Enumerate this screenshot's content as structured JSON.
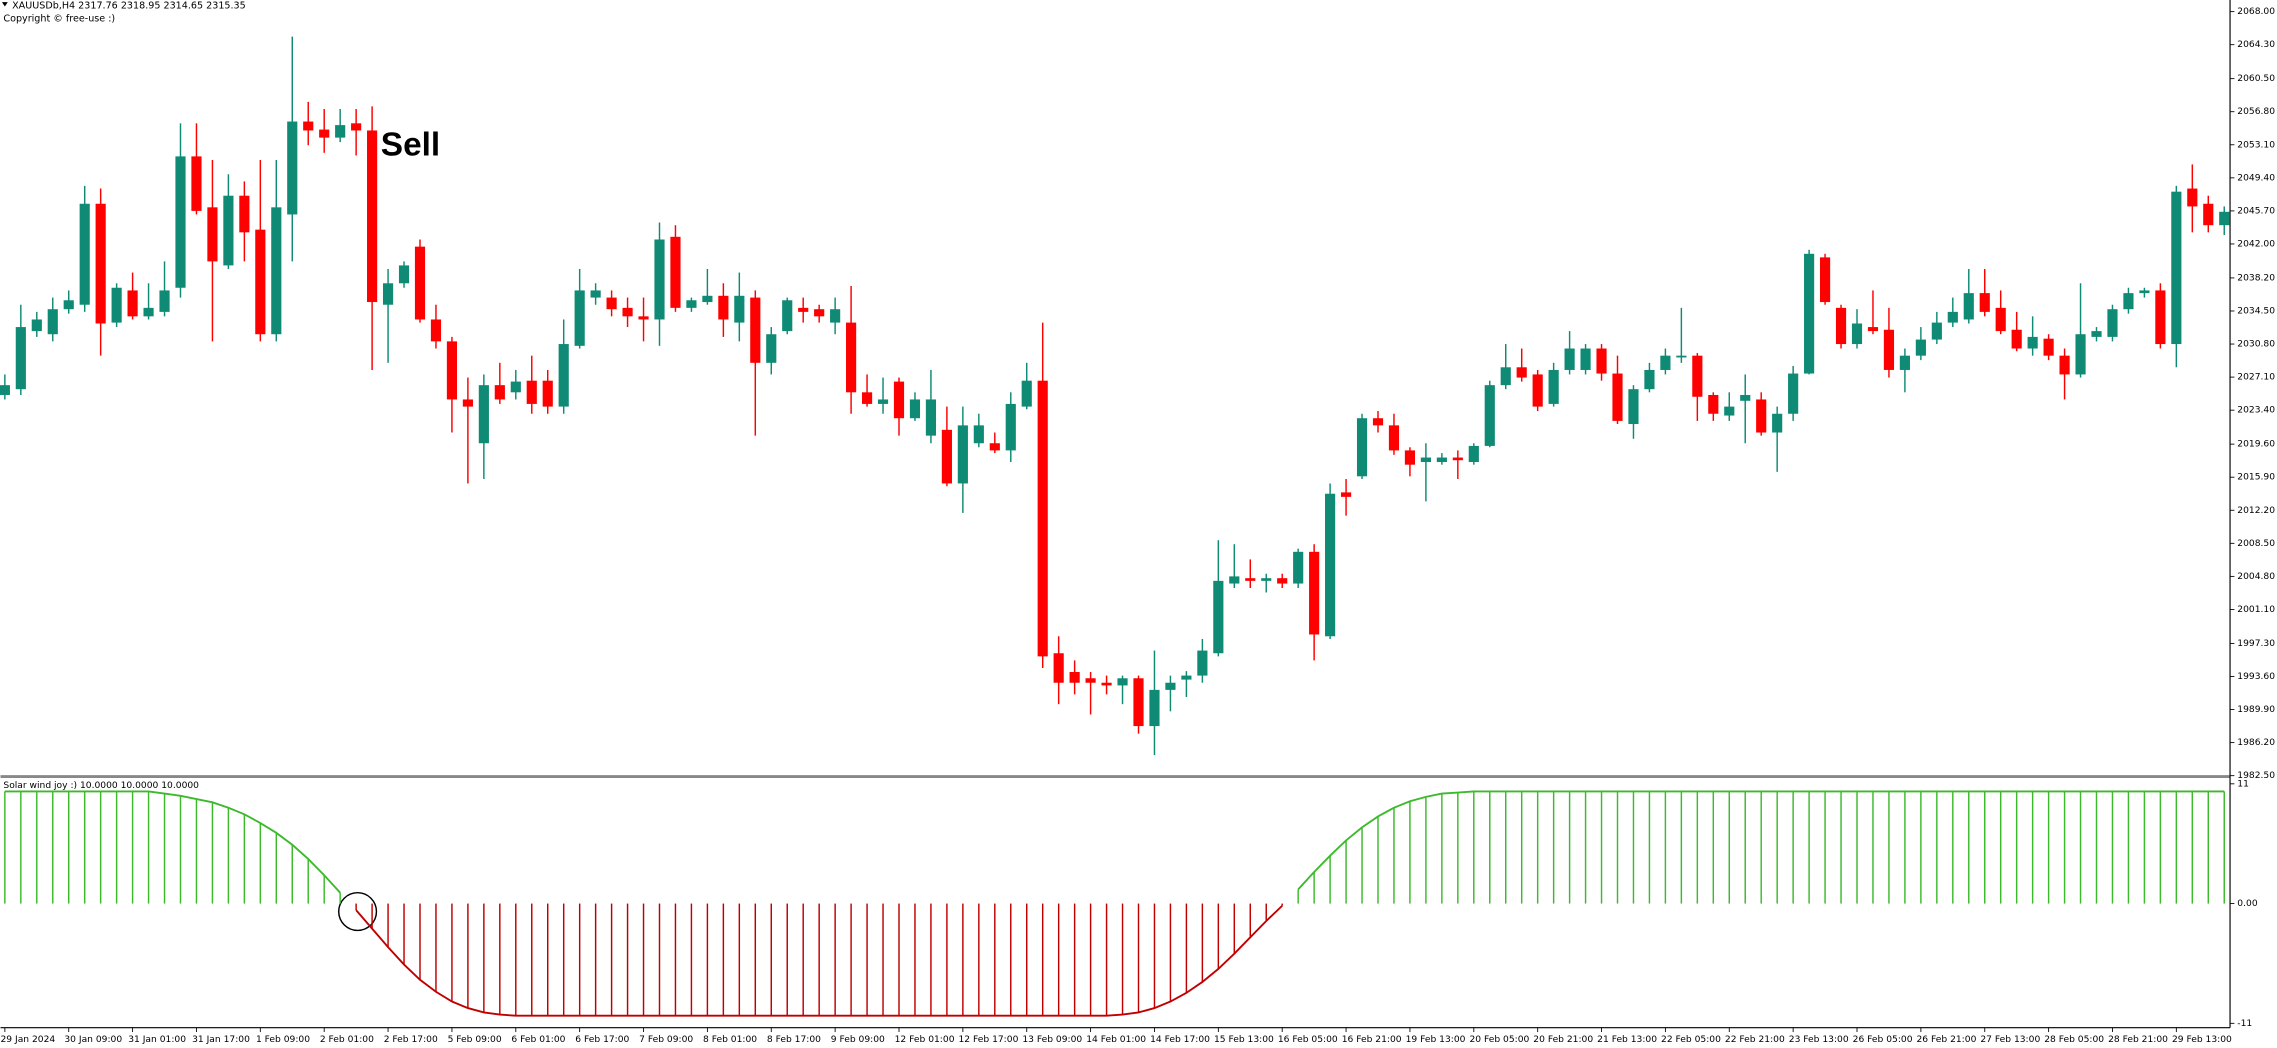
{
  "header": {
    "symbol_info": "XAUUSDb,H4  2317.76 2318.95 2314.65 2315.35",
    "copyright": "Copyright © free-use :)"
  },
  "chart_data": [
    {
      "type": "candlestick",
      "annotation": "Sell",
      "up_color": "#0f8b75",
      "down_color": "#ff0000",
      "categories": [
        "29 Jan 2024",
        null,
        null,
        null,
        "30 Jan 09:00",
        null,
        null,
        null,
        "31 Jan 01:00",
        null,
        null,
        null,
        "31 Jan 17:00",
        null,
        null,
        null,
        "1 Feb 09:00",
        null,
        null,
        null,
        "2 Feb 01:00",
        null,
        null,
        null,
        "2 Feb 17:00",
        null,
        null,
        null,
        "5 Feb 09:00",
        null,
        null,
        null,
        "6 Feb 01:00",
        null,
        null,
        null,
        "6 Feb 17:00",
        null,
        null,
        null,
        "7 Feb 09:00",
        null,
        null,
        null,
        "8 Feb 01:00",
        null,
        null,
        null,
        "8 Feb 17:00",
        null,
        null,
        null,
        "9 Feb 09:00",
        null,
        null,
        null,
        "12 Feb 01:00",
        null,
        null,
        null,
        "12 Feb 17:00",
        null,
        null,
        null,
        "13 Feb 09:00",
        null,
        null,
        null,
        "14 Feb 01:00",
        null,
        null,
        null,
        "14 Feb 17:00",
        null,
        null,
        null,
        "15 Feb 13:00",
        null,
        null,
        null,
        "16 Feb 05:00",
        null,
        null,
        null,
        "16 Feb 21:00",
        null,
        null,
        null,
        "19 Feb 13:00",
        null,
        null,
        null,
        "20 Feb 05:00",
        null,
        null,
        null,
        "20 Feb 21:00",
        null,
        null,
        null,
        "21 Feb 13:00",
        null,
        null,
        null,
        "22 Feb 05:00",
        null,
        null,
        null,
        "22 Feb 21:00",
        null,
        null,
        null,
        "23 Feb 13:00",
        null,
        null,
        null,
        "26 Feb 05:00",
        null,
        null,
        null,
        "26 Feb 21:00",
        null,
        null,
        null,
        "27 Feb 13:00",
        null,
        null,
        null,
        "28 Feb 05:00",
        null,
        null,
        null,
        "28 Feb 21:00",
        null,
        null,
        null,
        "29 Feb 13:00",
        null,
        null,
        null
      ],
      "open": [
        2025.1,
        2025.75,
        2032.25,
        2031.9,
        2034.7,
        2035.2,
        2046.5,
        2033.2,
        2036.8,
        2033.9,
        2034.4,
        2037.1,
        2051.8,
        2046.1,
        2039.6,
        2047.4,
        2043.6,
        2031.9,
        2045.3,
        2055.7,
        2054.8,
        2053.9,
        2055.5,
        2054.7,
        2035.2,
        2037.6,
        2041.7,
        2033.55,
        2031.1,
        2024.6,
        2019.7,
        2026.2,
        2025.4,
        2026.7,
        2026.7,
        2023.8,
        2030.6,
        2036.0,
        2036.0,
        2034.85,
        2033.9,
        2033.55,
        2042.8,
        2034.85,
        2035.5,
        2036.2,
        2033.2,
        2036.0,
        2028.7,
        2032.25,
        2034.85,
        2034.7,
        2033.2,
        2033.2,
        2025.4,
        2024.1,
        2026.6,
        2022.5,
        2020.55,
        2021.2,
        2015.2,
        2019.7,
        2019.7,
        2018.9,
        2023.8,
        2026.7,
        1996.2,
        1994.1,
        1993.4,
        1992.9,
        1992.6,
        1993.4,
        1988.05,
        1992.1,
        1993.25,
        1993.7,
        1996.2,
        2004.0,
        2004.6,
        2004.3,
        2004.6,
        2004.0,
        2007.55,
        1998.1,
        2014.2,
        2016.0,
        2022.5,
        2021.7,
        2018.9,
        2017.6,
        2017.6,
        2018.1,
        2017.6,
        2019.4,
        2026.2,
        2028.2,
        2027.4,
        2024.1,
        2027.9,
        2027.9,
        2030.3,
        2027.5,
        2021.85,
        2025.75,
        2027.9,
        2029.3,
        2029.5,
        2025.1,
        2022.8,
        2024.45,
        2024.6,
        2020.9,
        2023.0,
        2027.5,
        2040.5,
        2034.85,
        2030.8,
        2032.7,
        2032.4,
        2027.9,
        2029.5,
        2031.3,
        2033.2,
        2033.55,
        2036.5,
        2034.85,
        2032.4,
        2030.3,
        2031.4,
        2029.5,
        2027.4,
        2031.6,
        2031.6,
        2034.7,
        2036.5,
        2036.8,
        2030.8,
        2048.2,
        2046.5,
        2044.1
      ],
      "high": [
        2027.4,
        2035.2,
        2034.4,
        2036.0,
        2036.8,
        2048.5,
        2048.2,
        2037.6,
        2038.8,
        2037.6,
        2040.05,
        2055.5,
        2055.5,
        2051.4,
        2049.8,
        2049.0,
        2051.4,
        2051.4,
        2065.2,
        2057.9,
        2057.1,
        2057.1,
        2057.1,
        2057.4,
        2039.2,
        2040.05,
        2042.5,
        2035.2,
        2031.6,
        2027.05,
        2027.4,
        2028.7,
        2027.9,
        2029.5,
        2027.9,
        2033.55,
        2039.2,
        2037.6,
        2036.8,
        2036.0,
        2036.0,
        2044.4,
        2044.1,
        2036.0,
        2039.2,
        2037.6,
        2038.8,
        2036.8,
        2032.7,
        2036.0,
        2036.0,
        2035.2,
        2036.0,
        2037.3,
        2027.4,
        2027.05,
        2027.05,
        2025.4,
        2027.9,
        2023.8,
        2023.8,
        2023.0,
        2020.9,
        2025.4,
        2028.7,
        2033.2,
        1998.1,
        1995.4,
        1994.1,
        1993.7,
        1993.7,
        1993.7,
        1996.5,
        1993.7,
        1994.2,
        1997.8,
        2008.85,
        2008.4,
        2006.7,
        2005.1,
        2005.1,
        2007.9,
        2008.4,
        2015.2,
        2015.7,
        2023.0,
        2023.3,
        2023.0,
        2019.25,
        2019.7,
        2018.6,
        2018.9,
        2019.7,
        2026.7,
        2030.8,
        2030.3,
        2027.9,
        2028.7,
        2032.25,
        2030.8,
        2030.8,
        2029.5,
        2026.2,
        2028.7,
        2030.3,
        2034.85,
        2029.8,
        2025.4,
        2025.4,
        2027.4,
        2025.4,
        2023.8,
        2028.35,
        2041.35,
        2040.9,
        2035.2,
        2034.7,
        2036.8,
        2034.85,
        2030.3,
        2032.7,
        2034.4,
        2036.0,
        2039.2,
        2039.2,
        2036.8,
        2034.4,
        2033.9,
        2031.9,
        2030.3,
        2037.6,
        2032.7,
        2035.2,
        2037.1,
        2037.1,
        2037.6,
        2048.5,
        2050.9,
        2047.4,
        2046.2
      ],
      "low": [
        2024.6,
        2025.1,
        2031.6,
        2031.1,
        2034.2,
        2034.4,
        2029.5,
        2032.7,
        2033.55,
        2033.55,
        2033.9,
        2036.0,
        2045.3,
        2031.1,
        2039.2,
        2040.05,
        2031.1,
        2031.1,
        2040.05,
        2053.05,
        2052.2,
        2053.4,
        2051.9,
        2027.9,
        2028.7,
        2037.1,
        2033.2,
        2030.3,
        2020.9,
        2015.2,
        2015.7,
        2024.1,
        2024.6,
        2023.0,
        2023.0,
        2023.0,
        2030.3,
        2035.2,
        2033.9,
        2032.7,
        2031.1,
        2030.6,
        2034.4,
        2034.4,
        2035.2,
        2031.6,
        2031.1,
        2020.55,
        2027.4,
        2031.9,
        2033.2,
        2033.2,
        2031.9,
        2023.0,
        2023.8,
        2023.0,
        2020.55,
        2022.2,
        2019.7,
        2014.9,
        2011.9,
        2019.25,
        2018.6,
        2017.6,
        2023.5,
        1994.55,
        1990.5,
        1991.6,
        1989.35,
        1991.6,
        1990.5,
        1987.2,
        1984.8,
        1989.7,
        1991.3,
        1992.9,
        1995.85,
        2003.5,
        2003.5,
        2003.0,
        2003.5,
        2003.5,
        1995.4,
        1997.8,
        2011.6,
        2015.7,
        2020.9,
        2018.4,
        2016.0,
        2013.2,
        2017.3,
        2015.7,
        2017.3,
        2019.25,
        2025.75,
        2026.6,
        2023.3,
        2023.8,
        2027.4,
        2027.4,
        2026.7,
        2021.85,
        2020.2,
        2025.4,
        2027.4,
        2028.7,
        2022.2,
        2022.2,
        2022.2,
        2019.7,
        2020.55,
        2016.5,
        2022.2,
        2027.4,
        2035.2,
        2030.3,
        2030.3,
        2031.9,
        2027.05,
        2025.4,
        2029.0,
        2030.8,
        2032.7,
        2033.1,
        2033.9,
        2031.9,
        2030.0,
        2029.5,
        2029.0,
        2024.6,
        2027.05,
        2031.1,
        2031.1,
        2034.2,
        2036.0,
        2030.3,
        2028.2,
        2043.3,
        2043.3,
        2043.0
      ],
      "close": [
        2026.2,
        2032.7,
        2033.55,
        2034.7,
        2035.7,
        2046.5,
        2033.1,
        2037.1,
        2033.9,
        2034.85,
        2036.8,
        2051.8,
        2045.7,
        2040.05,
        2047.4,
        2043.3,
        2031.9,
        2046.1,
        2055.7,
        2054.7,
        2053.9,
        2055.3,
        2054.7,
        2035.5,
        2037.6,
        2039.6,
        2033.55,
        2031.1,
        2024.6,
        2023.8,
        2026.2,
        2024.6,
        2026.6,
        2024.1,
        2023.8,
        2030.8,
        2036.8,
        2036.8,
        2034.7,
        2033.9,
        2033.55,
        2042.5,
        2034.85,
        2035.7,
        2036.2,
        2033.55,
        2036.2,
        2028.7,
        2031.9,
        2035.7,
        2034.4,
        2033.9,
        2034.7,
        2025.4,
        2024.1,
        2024.6,
        2022.5,
        2024.6,
        2024.6,
        2015.2,
        2021.7,
        2021.7,
        2018.9,
        2024.1,
        2026.7,
        1995.85,
        1992.9,
        1992.9,
        1992.9,
        1992.6,
        1993.4,
        1988.05,
        1992.1,
        1992.9,
        1993.7,
        1996.5,
        2004.3,
        2004.8,
        2004.3,
        2004.6,
        2004.0,
        2007.55,
        1998.3,
        2014.05,
        2013.7,
        2022.5,
        2021.7,
        2018.9,
        2017.3,
        2018.1,
        2018.1,
        2017.8,
        2019.4,
        2026.2,
        2028.2,
        2027.05,
        2023.8,
        2027.9,
        2030.3,
        2030.3,
        2027.5,
        2022.2,
        2025.75,
        2027.9,
        2029.5,
        2029.5,
        2024.9,
        2023.0,
        2023.8,
        2025.1,
        2020.9,
        2023.0,
        2027.5,
        2040.9,
        2035.5,
        2030.8,
        2033.1,
        2032.25,
        2027.9,
        2029.5,
        2031.3,
        2033.2,
        2034.4,
        2036.5,
        2034.4,
        2032.25,
        2030.3,
        2031.6,
        2029.5,
        2027.4,
        2031.9,
        2032.25,
        2034.7,
        2036.5,
        2036.8,
        2030.8,
        2047.85,
        2046.2,
        2044.1,
        2045.6
      ],
      "ylim": [
        1982.4,
        2069.3
      ],
      "yticks": [
        {
          "value": 2068.0,
          "label": "2068.00"
        },
        {
          "value": 2064.3,
          "label": "2064.30"
        },
        {
          "value": 2060.5,
          "label": "2060.50"
        },
        {
          "value": 2056.8,
          "label": "2056.80"
        },
        {
          "value": 2053.1,
          "label": "2053.10"
        },
        {
          "value": 2049.4,
          "label": "2049.40"
        },
        {
          "value": 2045.7,
          "label": "2045.70"
        },
        {
          "value": 2042.0,
          "label": "2042.00"
        },
        {
          "value": 2038.2,
          "label": "2038.20"
        },
        {
          "value": 2034.5,
          "label": "2034.50"
        },
        {
          "value": 2030.8,
          "label": "2030.80"
        },
        {
          "value": 2027.1,
          "label": "2027.10"
        },
        {
          "value": 2023.4,
          "label": "2023.40"
        },
        {
          "value": 2019.6,
          "label": "2019.60"
        },
        {
          "value": 2015.9,
          "label": "2015.90"
        },
        {
          "value": 2012.2,
          "label": "2012.20"
        },
        {
          "value": 2008.5,
          "label": "2008.50"
        },
        {
          "value": 2004.8,
          "label": "2004.80"
        },
        {
          "value": 2001.1,
          "label": "2001.10"
        },
        {
          "value": 1997.3,
          "label": "1997.30"
        },
        {
          "value": 1993.6,
          "label": "1993.60"
        },
        {
          "value": 1989.9,
          "label": "1989.90"
        },
        {
          "value": 1986.2,
          "label": "1986.20"
        },
        {
          "value": 1982.5,
          "label": "1982.50"
        }
      ]
    },
    {
      "type": "histogram",
      "title": "Solar wind joy :) 10.0000 10.0000 10.0000",
      "positive_color": "#3cba2c",
      "negative_color": "#c00000",
      "values": [
        10.3,
        10.3,
        10.3,
        10.3,
        10.3,
        10.3,
        10.3,
        10.3,
        10.3,
        10.3,
        10.1,
        9.9,
        9.6,
        9.3,
        8.8,
        8.2,
        7.4,
        6.5,
        5.4,
        4.1,
        2.6,
        1.0,
        -0.6,
        -2.3,
        -4.0,
        -5.6,
        -7.0,
        -8.1,
        -9.0,
        -9.6,
        -10.0,
        -10.2,
        -10.3,
        -10.3,
        -10.3,
        -10.3,
        -10.3,
        -10.3,
        -10.3,
        -10.3,
        -10.3,
        -10.3,
        -10.3,
        -10.3,
        -10.3,
        -10.3,
        -10.3,
        -10.3,
        -10.3,
        -10.3,
        -10.3,
        -10.3,
        -10.3,
        -10.3,
        -10.3,
        -10.3,
        -10.3,
        -10.3,
        -10.3,
        -10.3,
        -10.3,
        -10.3,
        -10.3,
        -10.3,
        -10.3,
        -10.3,
        -10.3,
        -10.3,
        -10.3,
        -10.3,
        -10.2,
        -10.0,
        -9.6,
        -9.0,
        -8.2,
        -7.2,
        -6.0,
        -4.6,
        -3.1,
        -1.6,
        -0.2,
        1.3,
        2.9,
        4.4,
        5.8,
        7.0,
        8.0,
        8.8,
        9.4,
        9.8,
        10.1,
        10.2,
        10.3,
        10.3,
        10.3,
        10.3,
        10.3,
        10.3,
        10.3,
        10.3,
        10.3,
        10.3,
        10.3,
        10.3,
        10.3,
        10.3,
        10.3,
        10.3,
        10.3,
        10.3,
        10.3,
        10.3,
        10.3,
        10.3,
        10.3,
        10.3,
        10.3,
        10.3,
        10.3,
        10.3,
        10.3,
        10.3,
        10.3,
        10.3,
        10.3,
        10.3,
        10.3,
        10.3,
        10.3,
        10.3,
        10.3,
        10.3,
        10.3,
        10.3,
        10.3,
        10.3,
        10.3,
        10.3,
        10.3,
        10.3
      ],
      "ylim": [
        -11.4,
        11.4
      ],
      "yticks": [
        11,
        {
          "value": 0,
          "label": "0.00"
        },
        -11
      ]
    }
  ]
}
